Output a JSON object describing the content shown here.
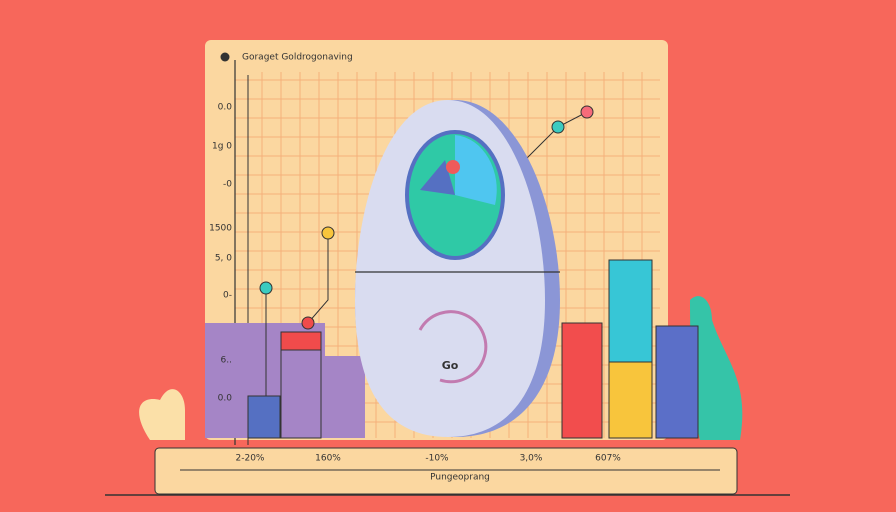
{
  "header": {
    "title": "Goraget Goldrogonaving"
  },
  "y_labels": [
    "0.0",
    "1g 0",
    "-0",
    "1500",
    "5, 0",
    "0-",
    "6..",
    "0.0"
  ],
  "x_labels": [
    "2-20%",
    "160%",
    "-10%",
    "3,0%",
    "607%"
  ],
  "caption": "Pungeoprang",
  "device_label": "Go"
}
